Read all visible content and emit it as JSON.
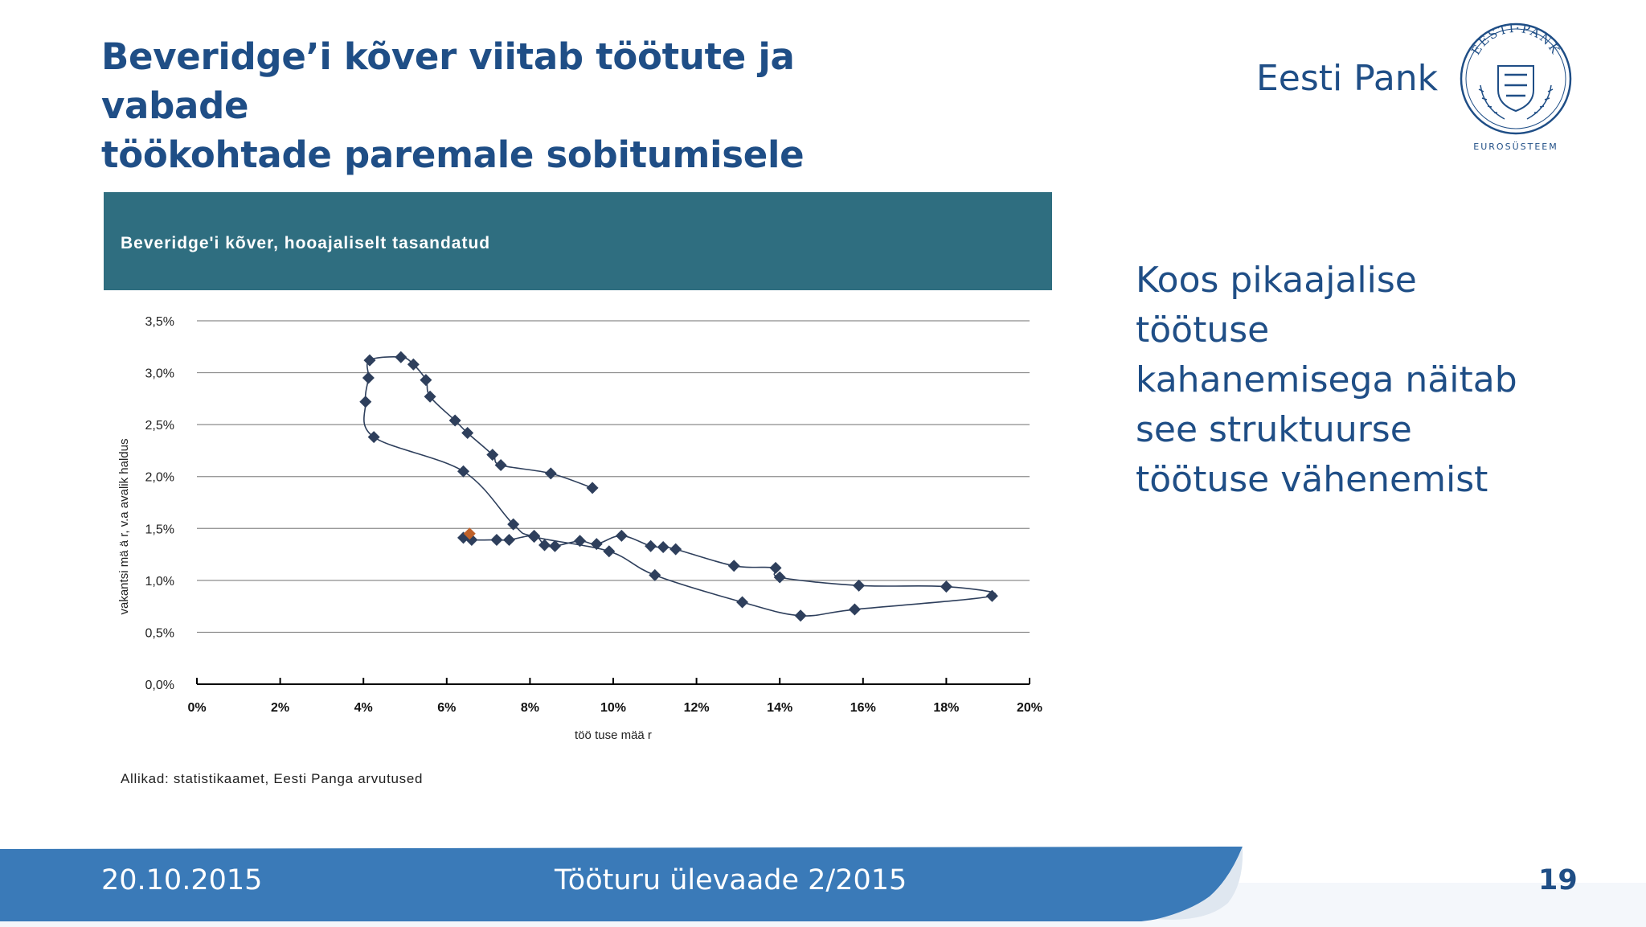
{
  "slide": {
    "title_line1": "Beveridge’i kõver viitab töötute ja vabade",
    "title_line2": "töökohtade paremale sobitumisele",
    "brand": "Eesti Pank",
    "seal_text_top": "EESTI·PANK",
    "seal_text_bottom": "EUROSÜSTEEM",
    "side_text": [
      "Koos pikaajalise",
      "töötuse",
      "kahanemisega näitab",
      "see struktuurse",
      "töötuse vähenemist"
    ],
    "source": "Allikad: statistikaamet, Eesti Panga arvutused"
  },
  "footer": {
    "date": "20.10.2015",
    "center": "Tööturu ülevaade 2/2015",
    "page": "19"
  },
  "colors": {
    "title": "#1f4e86",
    "chart_header": "#2f6e80",
    "marker": "#2e3f5c",
    "highlight": "#c0622a",
    "footer_blue": "#3a7ab8"
  },
  "chart_data": {
    "type": "scatter",
    "title": "Beveridge'i kõver, hooajaliselt tasandatud",
    "xlabel": "töö tuse mää r",
    "ylabel": "vakantsi mä ä r, v.a avalik haldus",
    "xlim": [
      0,
      20
    ],
    "ylim": [
      0,
      3.5
    ],
    "x_ticks": [
      "0%",
      "2%",
      "4%",
      "6%",
      "8%",
      "10%",
      "12%",
      "14%",
      "16%",
      "18%",
      "20%"
    ],
    "y_ticks": [
      "0,0%",
      "0,5%",
      "1,0%",
      "1,5%",
      "2,0%",
      "2,5%",
      "3,0%",
      "3,5%"
    ],
    "grid": true,
    "connected": true,
    "points": [
      [
        9.5,
        1.89
      ],
      [
        8.5,
        2.03
      ],
      [
        7.3,
        2.11
      ],
      [
        7.1,
        2.21
      ],
      [
        6.5,
        2.42
      ],
      [
        6.2,
        2.54
      ],
      [
        5.6,
        2.77
      ],
      [
        5.5,
        2.93
      ],
      [
        5.2,
        3.08
      ],
      [
        4.9,
        3.15
      ],
      [
        4.15,
        3.12
      ],
      [
        4.12,
        2.95
      ],
      [
        4.05,
        2.72
      ],
      [
        4.25,
        2.38
      ],
      [
        6.4,
        2.05
      ],
      [
        7.6,
        1.54
      ],
      [
        8.1,
        1.42
      ],
      [
        9.9,
        1.28
      ],
      [
        11.0,
        1.05
      ],
      [
        13.1,
        0.79
      ],
      [
        14.5,
        0.66
      ],
      [
        15.8,
        0.72
      ],
      [
        19.1,
        0.85
      ],
      [
        18.0,
        0.94
      ],
      [
        15.9,
        0.95
      ],
      [
        14.0,
        1.03
      ],
      [
        13.9,
        1.12
      ],
      [
        12.9,
        1.14
      ],
      [
        11.5,
        1.3
      ],
      [
        11.2,
        1.32
      ],
      [
        10.9,
        1.33
      ],
      [
        10.2,
        1.43
      ],
      [
        9.6,
        1.35
      ],
      [
        9.2,
        1.38
      ],
      [
        8.6,
        1.33
      ],
      [
        8.35,
        1.34
      ],
      [
        8.1,
        1.43
      ],
      [
        7.5,
        1.39
      ],
      [
        7.2,
        1.39
      ],
      [
        6.6,
        1.39
      ],
      [
        6.4,
        1.41
      ]
    ],
    "highlight_point": [
      6.55,
      1.45
    ]
  }
}
